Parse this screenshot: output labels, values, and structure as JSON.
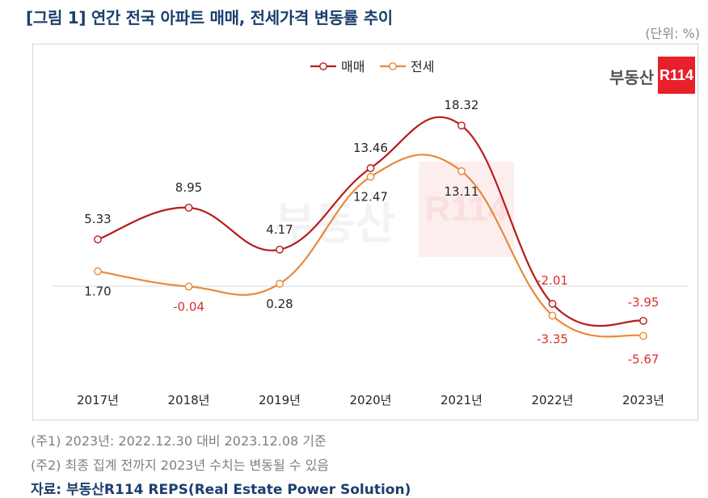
{
  "title": "[그림 1] 연간 전국 아파트 매매, 전세가격 변동률 추이",
  "unit": "(단위: %)",
  "logo": {
    "text": "부동산",
    "box": "R114"
  },
  "watermark": {
    "text": "부동산",
    "box": "R114"
  },
  "notes": [
    "(주1) 2023년: 2022.12.30 대비 2023.12.08 기준",
    "(주2) 최종 집계 전까지 2023년 수치는 변동될 수 있음"
  ],
  "source": "자료: 부동산R114 REPS(Real Estate Power Solution)",
  "colors": {
    "sale": "#b81c1c",
    "jeonse": "#e8893a",
    "negative_label": "#d9302c",
    "label": "#262626"
  },
  "chart_data": {
    "type": "line",
    "categories": [
      "2017년",
      "2018년",
      "2019년",
      "2020년",
      "2021년",
      "2022년",
      "2023년"
    ],
    "series": [
      {
        "name": "매매",
        "values": [
          5.33,
          8.95,
          4.17,
          13.46,
          18.32,
          -2.01,
          -3.95
        ],
        "labels": [
          "5.33",
          "8.95",
          "4.17",
          "13.46",
          "18.32",
          "-2.01",
          "-3.95"
        ]
      },
      {
        "name": "전세",
        "values": [
          1.7,
          -0.04,
          0.28,
          12.47,
          13.11,
          -3.35,
          -5.67
        ],
        "labels": [
          "1.70",
          "-0.04",
          "0.28",
          "12.47",
          "13.11",
          "-3.35",
          "-5.67"
        ]
      }
    ],
    "legend": "top-center",
    "line_style": "smoothed",
    "grid": false,
    "ylim": [
      -8,
      22
    ]
  }
}
